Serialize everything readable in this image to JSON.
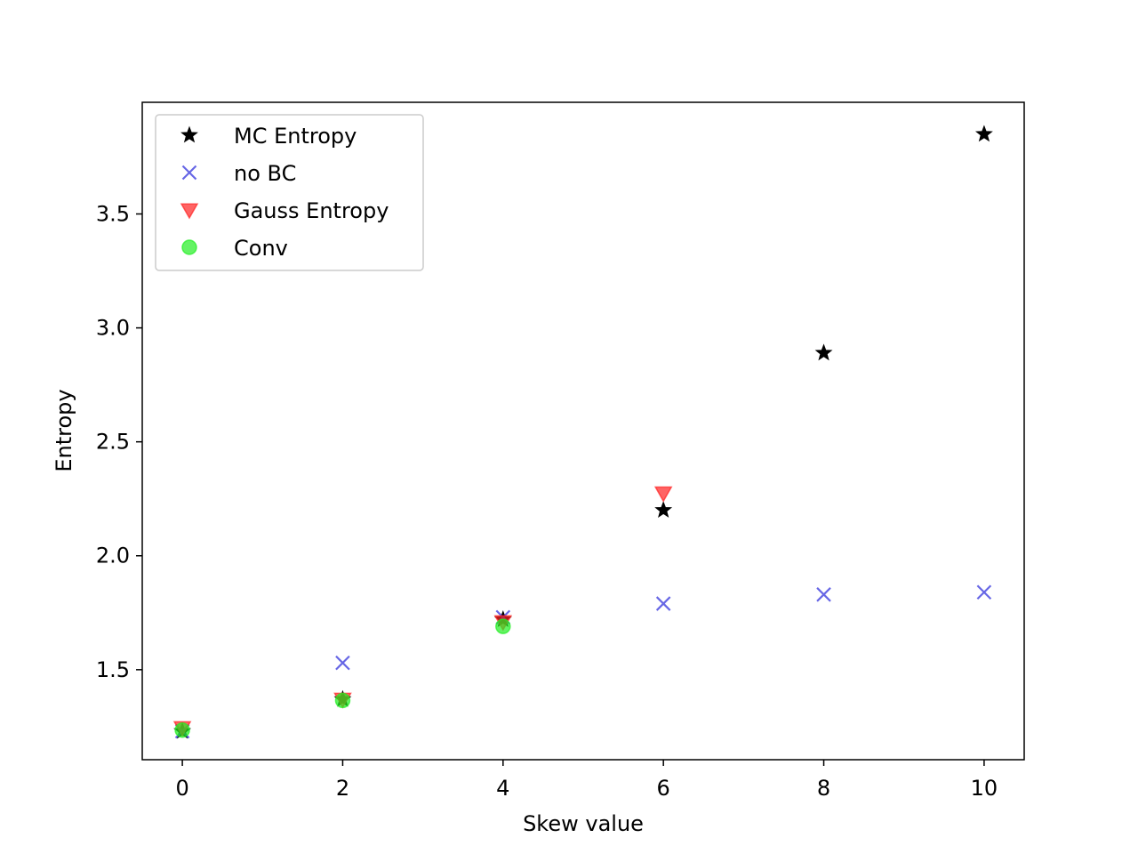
{
  "chart_data": {
    "type": "scatter",
    "title": "",
    "xlabel": "Skew value",
    "ylabel": "Entropy",
    "xlim": [
      -0.5,
      10.5
    ],
    "ylim": [
      1.105,
      3.99
    ],
    "xticks": [
      0,
      2,
      4,
      6,
      8,
      10
    ],
    "xtick_labels": [
      "0",
      "2",
      "4",
      "6",
      "8",
      "10"
    ],
    "yticks": [
      1.5,
      2.0,
      2.5,
      3.0,
      3.5
    ],
    "ytick_labels": [
      "1.5",
      "2.0",
      "2.5",
      "3.0",
      "3.5"
    ],
    "grid": false,
    "legend_position": "top-left",
    "series": [
      {
        "name": "MC Entropy",
        "marker": "star",
        "color": "#000000",
        "opacity": 1.0,
        "x": [
          0,
          2,
          4,
          6,
          8,
          10
        ],
        "y": [
          1.23,
          1.37,
          1.72,
          2.2,
          2.89,
          3.85
        ]
      },
      {
        "name": "no BC",
        "marker": "x",
        "color": "#3333dd",
        "opacity": 0.75,
        "x": [
          0,
          2,
          4,
          6,
          8,
          10
        ],
        "y": [
          1.23,
          1.53,
          1.73,
          1.79,
          1.83,
          1.84
        ]
      },
      {
        "name": "Gauss Entropy",
        "marker": "triangle-down",
        "color": "#ff2222",
        "opacity": 0.7,
        "x": [
          0,
          2,
          4,
          6
        ],
        "y": [
          1.245,
          1.37,
          1.71,
          2.275
        ]
      },
      {
        "name": "Conv",
        "marker": "circle",
        "color": "#22ee22",
        "opacity": 0.7,
        "x": [
          0,
          2,
          4
        ],
        "y": [
          1.235,
          1.365,
          1.69
        ]
      }
    ]
  }
}
